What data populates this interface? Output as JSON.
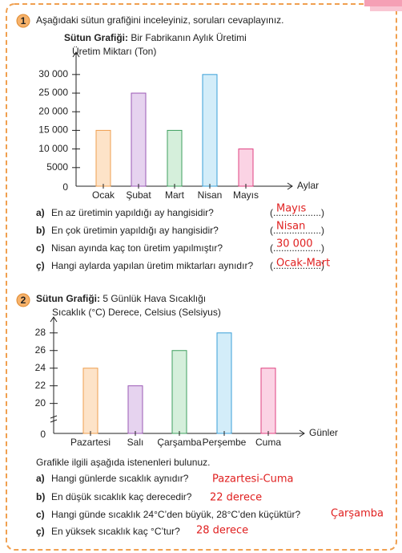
{
  "problems": [
    {
      "number": "1",
      "instruction": "Aşağıdaki sütun grafiğini inceleyiniz, soruları cevaplayınız.",
      "questions": [
        {
          "label": "a)",
          "text": "En az üretimin yapıldığı ay hangisidir?",
          "blank": "(..................)",
          "answer": "Mayıs"
        },
        {
          "label": "b)",
          "text": "En çok üretimin yapıldığı ay hangisidir?",
          "blank": "(..................)",
          "answer": "Nisan"
        },
        {
          "label": "c)",
          "text": "Nisan ayında kaç ton üretim yapılmıştır?",
          "blank": "(..................)",
          "answer": "30 000"
        },
        {
          "label": "ç)",
          "text": "Hangi aylarda yapılan üretim miktarları aynıdır?",
          "blank": "(..................)",
          "answer": "Ocak-Mart"
        }
      ]
    },
    {
      "number": "2",
      "instruction": "Grafikle ilgili aşağıda istenenleri bulunuz.",
      "questions": [
        {
          "label": "a)",
          "text": "Hangi günlerde sıcaklık aynıdır?",
          "answer": "Pazartesi-Cuma"
        },
        {
          "label": "b)",
          "text": "En düşük sıcaklık kaç derecedir?",
          "answer": "22 derece"
        },
        {
          "label": "c)",
          "text": "Hangi günde sıcaklık 24°C’den büyük, 28°C’den küçüktür?",
          "answer": "Çarşamba"
        },
        {
          "label": "ç)",
          "text": "En yüksek sıcaklık kaç °C’tur?",
          "answer": "28 derece"
        }
      ]
    }
  ],
  "chart_data": [
    {
      "type": "bar",
      "title_prefix": "Sütun Grafiği:",
      "title": "Bir Fabrikanın Aylık Üretimi",
      "y_label": "Üretim Miktarı (Ton)",
      "x_label": "Aylar",
      "origin_label": "0",
      "categories": [
        "Ocak",
        "Şubat",
        "Mart",
        "Nisan",
        "Mayıs"
      ],
      "values": [
        15000,
        25000,
        15000,
        30000,
        10000
      ],
      "colors": [
        "#fde3c8",
        "#e6d3ef",
        "#d5efdb",
        "#d3edf9",
        "#fbd3e4"
      ],
      "edge_colors": [
        "#ef9f4f",
        "#9b59b6",
        "#3f9f5f",
        "#3a9fd8",
        "#df4080"
      ],
      "ylim": [
        0,
        36000
      ],
      "yticks": [
        5000,
        {
          "value": 10000,
          "label": "10 000"
        },
        {
          "value": 15000,
          "label": "15 000"
        },
        {
          "value": 20000,
          "label": "20 000"
        },
        {
          "value": 25000,
          "label": "25 000"
        },
        {
          "value": 30000,
          "label": "30 000"
        }
      ],
      "grid": false
    },
    {
      "type": "bar",
      "title_prefix": "Sütun Grafiği:",
      "title": "5 Günlük Hava Sıcaklığı",
      "y_label": "Sıcaklık (°C) Derece, Celsius (Selsiyus)",
      "x_label": "Günler",
      "origin_label": "0",
      "categories": [
        "Pazartesi",
        "Salı",
        "Çarşamba",
        "Perşembe",
        "Cuma"
      ],
      "values": [
        24,
        22,
        26,
        28,
        24
      ],
      "colors": [
        "#fde3c8",
        "#e6d3ef",
        "#d5efdb",
        "#d3edf9",
        "#fbd3e4"
      ],
      "edge_colors": [
        "#ef9f4f",
        "#9b59b6",
        "#3f9f5f",
        "#3a9fd8",
        "#df4080"
      ],
      "ylim": [
        16.6,
        29.8
      ],
      "yticks": [
        20,
        22,
        24,
        26,
        28
      ],
      "grid": false
    }
  ]
}
